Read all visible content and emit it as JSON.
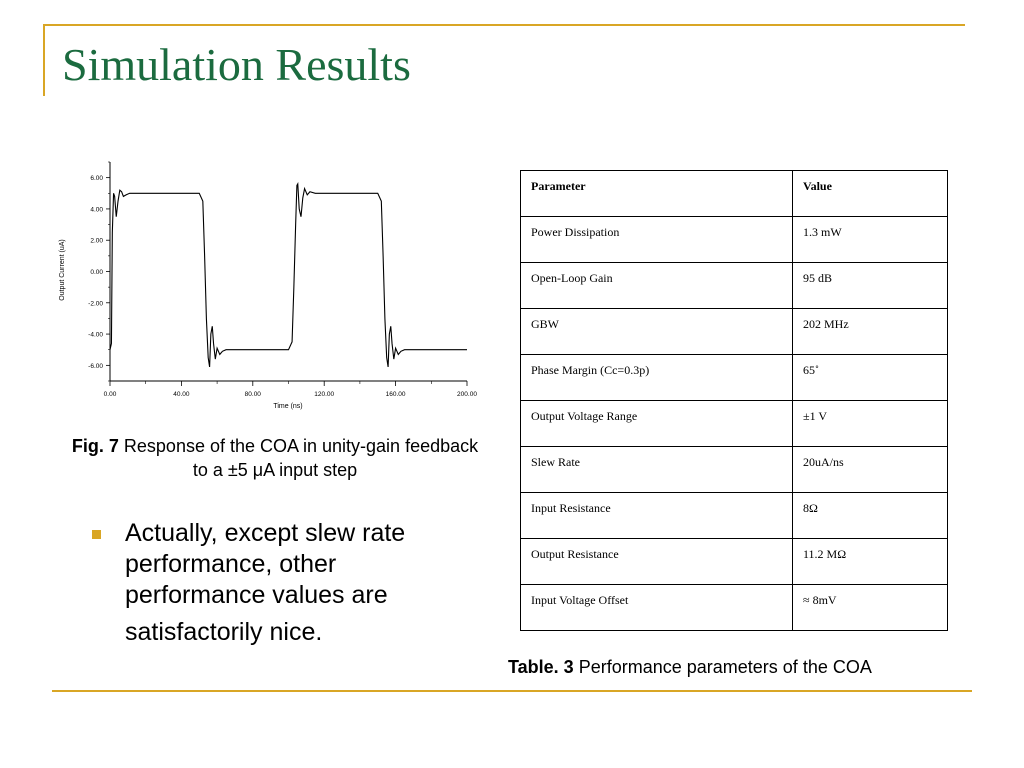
{
  "slide": {
    "title": "Simulation Results",
    "figure_caption": {
      "label": "Fig. 7",
      "text": "Response of the COA in unity-gain feedback to a ±5 μA input step"
    },
    "bullet": {
      "lines": [
        "Actually, except slew rate",
        "performance, other",
        "performance values are",
        "satisfactorily nice."
      ]
    },
    "table_caption": {
      "label": "Table. 3",
      "text": "Performance parameters of the COA"
    },
    "colors": {
      "title": "#1b6b3f",
      "accent": "#d9a625",
      "line": "#000000"
    }
  },
  "table": {
    "headers": [
      "Parameter",
      "Value"
    ],
    "rows": [
      [
        "Power Dissipation",
        "1.3 mW"
      ],
      [
        "Open-Loop Gain",
        "95 dB"
      ],
      [
        "GBW",
        "202 MHz"
      ],
      [
        "Phase Margin (Cc=0.3p)",
        "65˚"
      ],
      [
        "Output Voltage Range",
        "±1 V"
      ],
      [
        "Slew Rate",
        "20uA/ns"
      ],
      [
        "Input Resistance",
        "8Ω"
      ],
      [
        "Output Resistance",
        "11.2 MΩ"
      ],
      [
        "Input Voltage Offset",
        "≈ 8mV"
      ]
    ]
  },
  "chart_data": {
    "type": "line",
    "xlabel": "Time (ns)",
    "ylabel": "Output Current (uA)",
    "xlim": [
      0,
      200
    ],
    "ylim": [
      -7,
      7
    ],
    "x_ticks": [
      "0.00",
      "40.00",
      "80.00",
      "120.00",
      "160.00",
      "200.00"
    ],
    "y_ticks": [
      "6.00",
      "4.00",
      "2.00",
      "0.00",
      "-2.00",
      "-4.00",
      "-6.00"
    ],
    "x_tick_values": [
      0,
      40,
      80,
      120,
      160,
      200
    ],
    "y_tick_values": [
      6,
      4,
      2,
      0,
      -2,
      -4,
      -6
    ],
    "grid": false,
    "series": [
      {
        "x": [
          0,
          0.8,
          1.3,
          2,
          2.6,
          3.5,
          4.5,
          5.5,
          6.5,
          7.5,
          9,
          11,
          14,
          20,
          30,
          40,
          50,
          52,
          53,
          54,
          55,
          55.8,
          56.5,
          57.3,
          58,
          59,
          60,
          61.5,
          63,
          65,
          68,
          75,
          85,
          100,
          102,
          103,
          104,
          104.7,
          105.2,
          106,
          107,
          108,
          109,
          110.5,
          112,
          115,
          120,
          130,
          140,
          150,
          152,
          153,
          154,
          155,
          155.8,
          156.5,
          157.3,
          158,
          159,
          160,
          161.5,
          163,
          165,
          168,
          175,
          185,
          200
        ],
        "y": [
          -5,
          -4.6,
          2.5,
          5.0,
          4.8,
          3.5,
          4.5,
          5.2,
          5.1,
          4.8,
          4.9,
          5.0,
          5.0,
          5.0,
          5.0,
          5.0,
          5.0,
          4.5,
          1.0,
          -3.0,
          -5.5,
          -6.1,
          -4.0,
          -3.5,
          -4.6,
          -5.6,
          -4.9,
          -5.3,
          -5.1,
          -5.0,
          -5.0,
          -5.0,
          -5.0,
          -5.0,
          -4.5,
          -1.0,
          3.0,
          5.5,
          5.6,
          4.0,
          3.5,
          4.7,
          5.3,
          4.9,
          5.1,
          5.0,
          5.0,
          5.0,
          5.0,
          5.0,
          4.5,
          1.0,
          -3.0,
          -5.5,
          -6.1,
          -4.0,
          -3.5,
          -4.6,
          -5.6,
          -4.9,
          -5.3,
          -5.1,
          -5.0,
          -5.0,
          -5.0,
          -5.0,
          -5.0
        ]
      }
    ]
  }
}
